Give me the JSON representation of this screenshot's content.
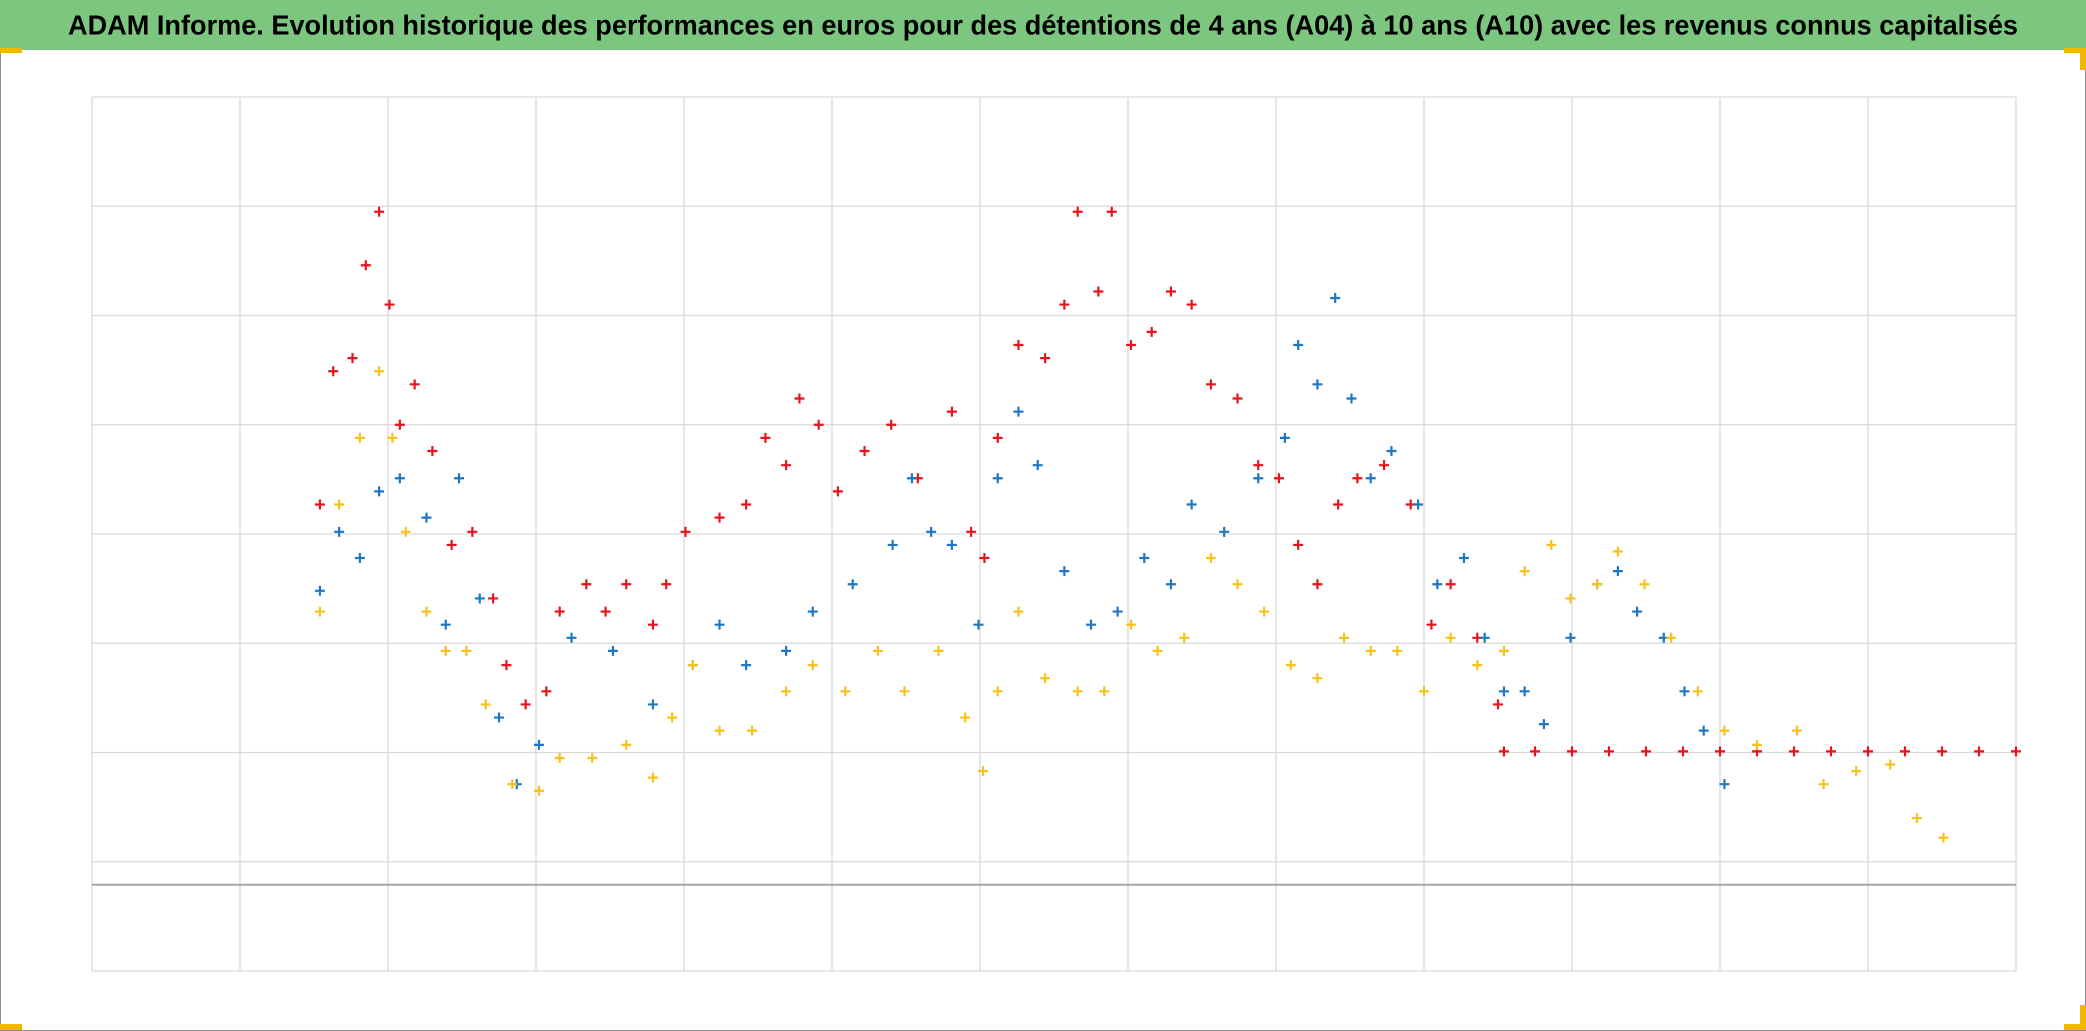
{
  "chart_data": {
    "type": "scatter",
    "title": "ADAM Informe. Evolution historique des performances en euros pour des détentions de 4 ans (A04) à 10 ans (A10) avec les revenus connus capitalisés",
    "xlim": [
      0,
      13
    ],
    "xticks": [
      0,
      1,
      2,
      3,
      4,
      5,
      6,
      7,
      8,
      9,
      10,
      11,
      12,
      13
    ],
    "ylim": [
      0,
      8
    ],
    "yticks": [
      0,
      1,
      2,
      3,
      4,
      5,
      6,
      7,
      8
    ],
    "grid": true,
    "baseline": 0.79,
    "series": [
      {
        "color": "#e8131b",
        "x": [
          1.54,
          1.63,
          1.76,
          1.85,
          1.94,
          2.01,
          2.08,
          2.18,
          2.3,
          2.43,
          2.57,
          2.71,
          2.8,
          2.93,
          3.07,
          3.16,
          3.34,
          3.47,
          3.61,
          3.79,
          3.88,
          4.01,
          4.24,
          4.42,
          4.55,
          4.69,
          4.78,
          4.91,
          5.04,
          5.22,
          5.4,
          5.58,
          5.81,
          5.94,
          6.03,
          6.12,
          6.26,
          6.44,
          6.57,
          6.66,
          6.8,
          6.89,
          7.02,
          7.16,
          7.29,
          7.43,
          7.56,
          7.74,
          7.88,
          8.02,
          8.15,
          8.28,
          8.42,
          8.55,
          8.73,
          8.91,
          9.05,
          9.18,
          9.36,
          9.5,
          9.54,
          9.75,
          10.0,
          10.25,
          10.5,
          10.75,
          11.0,
          11.25,
          11.5,
          11.75,
          12.0,
          12.25,
          12.5,
          12.75,
          13.0
        ],
        "values": [
          4.27,
          5.49,
          5.61,
          6.46,
          6.95,
          6.1,
          5.0,
          5.37,
          4.76,
          3.9,
          4.02,
          3.41,
          2.8,
          2.44,
          2.56,
          3.29,
          3.54,
          3.29,
          3.54,
          3.17,
          3.54,
          4.02,
          4.15,
          4.27,
          4.88,
          4.63,
          5.24,
          5.0,
          4.39,
          4.76,
          5.0,
          4.51,
          5.12,
          4.02,
          3.78,
          4.88,
          5.73,
          5.61,
          6.1,
          6.95,
          6.22,
          6.95,
          5.73,
          5.85,
          6.22,
          6.1,
          5.37,
          5.24,
          4.63,
          4.51,
          3.9,
          3.54,
          4.27,
          4.51,
          4.63,
          4.27,
          3.17,
          3.54,
          3.05,
          2.44,
          2.01,
          2.01,
          2.01,
          2.01,
          2.01,
          2.01,
          2.01,
          2.01,
          2.01,
          2.01,
          2.01,
          2.01,
          2.01,
          2.01,
          2.01
        ]
      },
      {
        "color": "#1f77c4",
        "x": [
          1.54,
          1.67,
          1.81,
          1.94,
          2.08,
          2.26,
          2.39,
          2.48,
          2.62,
          2.75,
          2.87,
          3.02,
          3.24,
          3.52,
          3.79,
          4.06,
          4.24,
          4.42,
          4.69,
          4.87,
          5.14,
          5.41,
          5.54,
          5.67,
          5.81,
          5.99,
          6.12,
          6.26,
          6.39,
          6.57,
          6.75,
          6.93,
          7.11,
          7.29,
          7.43,
          7.65,
          7.88,
          8.06,
          8.15,
          8.28,
          8.4,
          8.51,
          8.64,
          8.78,
          8.96,
          9.09,
          9.27,
          9.41,
          9.54,
          9.68,
          9.81,
          9.99,
          10.17,
          10.31,
          10.44,
          10.62,
          10.76,
          10.89,
          11.03
        ],
        "values": [
          3.48,
          4.02,
          3.78,
          4.39,
          4.51,
          4.15,
          3.17,
          4.51,
          3.41,
          2.32,
          1.71,
          2.07,
          3.05,
          2.93,
          2.44,
          2.8,
          3.17,
          2.8,
          2.93,
          3.29,
          3.54,
          3.9,
          4.51,
          4.02,
          3.9,
          3.17,
          4.51,
          5.12,
          4.63,
          3.66,
          3.17,
          3.29,
          3.78,
          3.54,
          4.27,
          4.02,
          4.51,
          4.88,
          5.73,
          5.37,
          6.16,
          5.24,
          4.51,
          4.76,
          4.27,
          3.54,
          3.78,
          3.05,
          2.56,
          2.56,
          2.26,
          3.05,
          3.54,
          3.66,
          3.29,
          3.05,
          2.56,
          2.2,
          1.71
        ]
      },
      {
        "color": "#f7c21b",
        "x": [
          1.54,
          1.67,
          1.81,
          1.94,
          2.03,
          2.12,
          2.26,
          2.39,
          2.53,
          2.66,
          2.84,
          3.02,
          3.16,
          3.38,
          3.61,
          3.79,
          3.92,
          4.06,
          4.24,
          4.46,
          4.69,
          4.87,
          5.09,
          5.31,
          5.49,
          5.72,
          5.9,
          6.02,
          6.12,
          6.26,
          6.44,
          6.66,
          6.84,
          7.02,
          7.2,
          7.38,
          7.56,
          7.74,
          7.92,
          8.1,
          8.28,
          8.46,
          8.64,
          8.82,
          9.0,
          9.18,
          9.36,
          9.54,
          9.68,
          9.86,
          9.99,
          10.17,
          10.31,
          10.49,
          10.67,
          10.85,
          11.03,
          11.25,
          11.52,
          11.7,
          11.92,
          12.15,
          12.33,
          12.51
        ],
        "values": [
          3.29,
          4.27,
          4.88,
          5.49,
          4.88,
          4.02,
          3.29,
          2.93,
          2.93,
          2.44,
          1.71,
          1.65,
          1.95,
          1.95,
          2.07,
          1.77,
          2.32,
          2.8,
          2.2,
          2.2,
          2.56,
          2.8,
          2.56,
          2.93,
          2.56,
          2.93,
          2.32,
          1.83,
          2.56,
          3.29,
          2.68,
          2.56,
          2.56,
          3.17,
          2.93,
          3.05,
          3.78,
          3.54,
          3.29,
          2.8,
          2.68,
          3.05,
          2.93,
          2.93,
          2.56,
          3.05,
          2.8,
          2.93,
          3.66,
          3.9,
          3.41,
          3.54,
          3.84,
          3.54,
          3.05,
          2.56,
          2.2,
          2.07,
          2.2,
          1.71,
          1.83,
          1.89,
          1.4,
          1.22
        ]
      }
    ]
  }
}
